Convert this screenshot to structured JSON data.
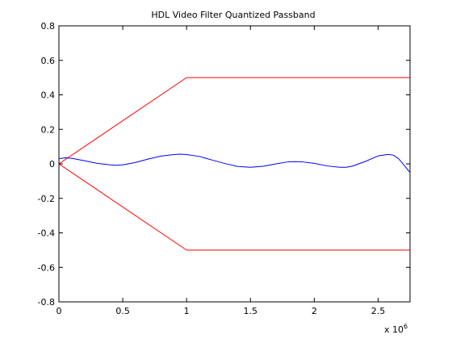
{
  "chart_data": {
    "type": "line",
    "title": "HDL Video Filter Quantized Passband",
    "xlabel": "",
    "ylabel": "",
    "xlim": [
      0,
      2750000
    ],
    "ylim": [
      -0.8,
      0.8
    ],
    "x_exponent_label": {
      "base": "x 10",
      "exponent": "6"
    },
    "x_ticks": [
      0,
      500000,
      1000000,
      1500000,
      2000000,
      2500000
    ],
    "x_tick_labels": [
      "0",
      "0.5",
      "1",
      "1.5",
      "2",
      "2.5"
    ],
    "y_ticks": [
      -0.8,
      -0.6,
      -0.4,
      -0.2,
      0,
      0.2,
      0.4,
      0.6,
      0.8
    ],
    "y_tick_labels": [
      "-0.8",
      "-0.6",
      "-0.4",
      "-0.2",
      "0",
      "0.2",
      "0.4",
      "0.6",
      "0.8"
    ],
    "grid": false,
    "series": [
      {
        "color": "#ff0000",
        "x": [
          0,
          1000000,
          2750000
        ],
        "y": [
          0,
          0.5,
          0.5
        ]
      },
      {
        "color": "#ff0000",
        "x": [
          0,
          1000000,
          2750000
        ],
        "y": [
          0,
          -0.5,
          -0.5
        ]
      },
      {
        "color": "#0000ff",
        "x": [
          0,
          50000,
          100000,
          200000,
          300000,
          400000,
          450000,
          500000,
          600000,
          700000,
          800000,
          900000,
          950000,
          1000000,
          1100000,
          1200000,
          1300000,
          1400000,
          1500000,
          1600000,
          1700000,
          1800000,
          1850000,
          1900000,
          2000000,
          2100000,
          2200000,
          2250000,
          2300000,
          2400000,
          2500000,
          2580000,
          2620000,
          2660000,
          2700000,
          2750000
        ],
        "y": [
          0.03,
          0.035,
          0.032,
          0.018,
          0.003,
          -0.006,
          -0.008,
          -0.006,
          0.008,
          0.028,
          0.045,
          0.054,
          0.056,
          0.054,
          0.043,
          0.022,
          0.002,
          -0.015,
          -0.02,
          -0.014,
          0.0,
          0.012,
          0.013,
          0.012,
          0.003,
          -0.012,
          -0.02,
          -0.02,
          -0.013,
          0.014,
          0.046,
          0.055,
          0.05,
          0.03,
          -0.005,
          -0.05
        ]
      }
    ]
  }
}
